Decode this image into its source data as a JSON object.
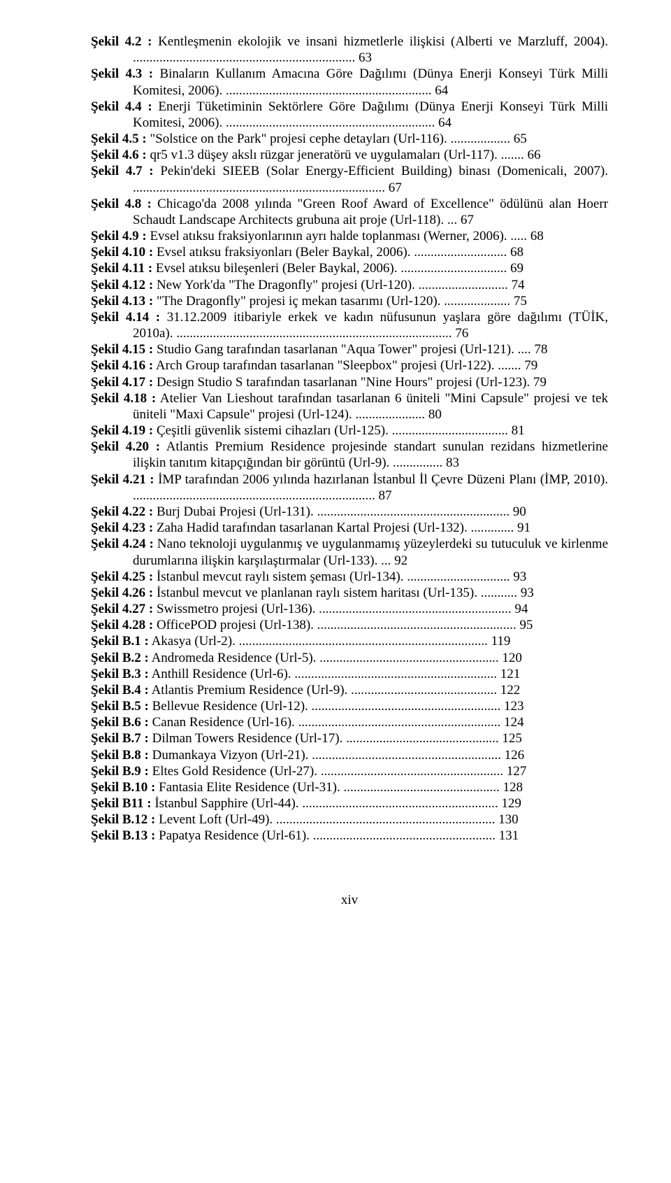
{
  "entries": [
    {
      "label": "Şekil 4.2 :",
      "text": "Kentleşmenin ekolojik ve insani hizmetlerle ilişkisi (Alberti ve Marzluff, 2004). ................................................................... 63"
    },
    {
      "label": "Şekil 4.3 :",
      "text": "Binaların Kullanım Amacına Göre Dağılımı (Dünya Enerji Konseyi Türk Milli Komitesi, 2006). .............................................................. 64"
    },
    {
      "label": "Şekil 4.4 :",
      "text": "Enerji Tüketiminin Sektörlere Göre Dağılımı (Dünya Enerji Konseyi Türk Milli Komitesi, 2006). ............................................................... 64"
    },
    {
      "label": "Şekil 4.5 :",
      "text": "\"Solstice on the Park\" projesi cephe detayları (Url-116). .................. 65"
    },
    {
      "label": "Şekil 4.6 :",
      "text": "qr5 v1.3 düşey akslı rüzgar jeneratörü ve uygulamaları (Url-117). ....... 66"
    },
    {
      "label": "Şekil 4.7 :",
      "text": "Pekin'deki SIEEB (Solar Energy-Efficient Building) binası (Domenicali, 2007). ............................................................................ 67"
    },
    {
      "label": "Şekil 4.8 :",
      "text": "Chicago'da 2008 yılında \"Green Roof Award of Excellence\" ödülünü alan Hoerr Schaudt Landscape Architects grubuna ait proje (Url-118). ... 67"
    },
    {
      "label": "Şekil 4.9 :",
      "text": "Evsel atıksu fraksiyonlarının ayrı halde toplanması (Werner, 2006). ..... 68"
    },
    {
      "label": "Şekil 4.10 :",
      "text": "Evsel atıksu fraksiyonları (Beler Baykal, 2006). ............................ 68"
    },
    {
      "label": "Şekil 4.11 :",
      "text": "Evsel atıksu bileşenleri (Beler Baykal, 2006). ................................ 69"
    },
    {
      "label": "Şekil 4.12 :",
      "text": "New York'da \"The Dragonfly\" projesi (Url-120). ........................... 74"
    },
    {
      "label": "Şekil 4.13 :",
      "text": "\"The Dragonfly\" projesi iç mekan tasarımı (Url-120). .................... 75"
    },
    {
      "label": "Şekil 4.14 :",
      "text": "31.12.2009 itibariyle erkek ve kadın nüfusunun yaşlara göre dağılımı (TÜİK, 2010a). ................................................................................... 76"
    },
    {
      "label": "Şekil 4.15 :",
      "text": "Studio Gang tarafından tasarlanan \"Aqua Tower\" projesi (Url-121). .... 78"
    },
    {
      "label": "Şekil 4.16 :",
      "text": "Arch Group tarafından tasarlanan \"Sleepbox\" projesi (Url-122). ....... 79"
    },
    {
      "label": "Şekil 4.17 :",
      "text": "Design Studio S tarafından tasarlanan \"Nine Hours\" projesi (Url-123). 79"
    },
    {
      "label": "Şekil 4.18 :",
      "text": "Atelier Van Lieshout tarafından tasarlanan 6 üniteli \"Mini Capsule\" projesi ve tek üniteli \"Maxi Capsule\" projesi (Url-124). ..................... 80"
    },
    {
      "label": "Şekil 4.19 :",
      "text": "Çeşitli güvenlik sistemi cihazları (Url-125). ................................... 81"
    },
    {
      "label": "Şekil 4.20 :",
      "text": "Atlantis Premium Residence projesinde standart sunulan rezidans hizmetlerine ilişkin tanıtım kitapçığından bir görüntü (Url-9). ............... 83"
    },
    {
      "label": "Şekil 4.21 :",
      "text": "İMP tarafından 2006 yılında hazırlanan İstanbul İl Çevre Düzeni Planı (İMP, 2010). ......................................................................... 87"
    },
    {
      "label": "Şekil 4.22 :",
      "text": "Burj Dubai Projesi (Url-131). .......................................................... 90"
    },
    {
      "label": "Şekil 4.23 :",
      "text": "Zaha Hadid tarafından tasarlanan Kartal Projesi (Url-132). ............. 91"
    },
    {
      "label": "Şekil 4.24 :",
      "text": "Nano teknoloji uygulanmış ve uygulanmamış yüzeylerdeki su tutuculuk ve kirlenme durumlarına ilişkin karşılaştırmalar (Url-133). ... 92"
    },
    {
      "label": "Şekil 4.25 :",
      "text": "İstanbul mevcut raylı sistem şeması (Url-134). ............................... 93"
    },
    {
      "label": "Şekil 4.26 :",
      "text": "İstanbul mevcut ve planlanan raylı sistem haritası (Url-135). ........... 93"
    },
    {
      "label": "Şekil 4.27 :",
      "text": "Swissmetro projesi (Url-136). .......................................................... 94"
    },
    {
      "label": "Şekil 4.28 :",
      "text": "OfficePOD projesi (Url-138). ............................................................ 95"
    },
    {
      "label": "Şekil B.1 :",
      "text": "Akasya (Url-2). ........................................................................... 119"
    },
    {
      "label": "Şekil B.2 :",
      "text": "Andromeda Residence (Url-5). ...................................................... 120"
    },
    {
      "label": "Şekil B.3 :",
      "text": "Anthill Residence (Url-6). ............................................................. 121"
    },
    {
      "label": "Şekil B.4 :",
      "text": "Atlantis Premium Residence (Url-9). ............................................ 122"
    },
    {
      "label": "Şekil B.5 :",
      "text": "Bellevue Residence (Url-12). ......................................................... 123"
    },
    {
      "label": "Şekil B.6 :",
      "text": "Canan Residence (Url-16). ............................................................. 124"
    },
    {
      "label": "Şekil B.7 :",
      "text": "Dilman Towers Residence (Url-17). .............................................. 125"
    },
    {
      "label": "Şekil B.8 :",
      "text": "Dumankaya Vizyon (Url-21). ......................................................... 126"
    },
    {
      "label": "Şekil B.9 :",
      "text": "Eltes Gold Residence (Url-27). ....................................................... 127"
    },
    {
      "label": "Şekil B.10 :",
      "text": "Fantasia Elite Residence (Url-31). ............................................... 128"
    },
    {
      "label": "Şekil B11 :",
      "text": "İstanbul Sapphire (Url-44). ........................................................... 129"
    },
    {
      "label": "Şekil B.12 :",
      "text": "Levent Loft (Url-49). .................................................................. 130"
    },
    {
      "label": "Şekil B.13 :",
      "text": "Papatya Residence (Url-61). ....................................................... 131"
    }
  ],
  "page_number": "xiv",
  "colors": {
    "text": "#000000",
    "background": "#ffffff"
  },
  "typography": {
    "font_family": "Times New Roman",
    "body_fontsize_pt": 14,
    "line_height": 1.22
  }
}
